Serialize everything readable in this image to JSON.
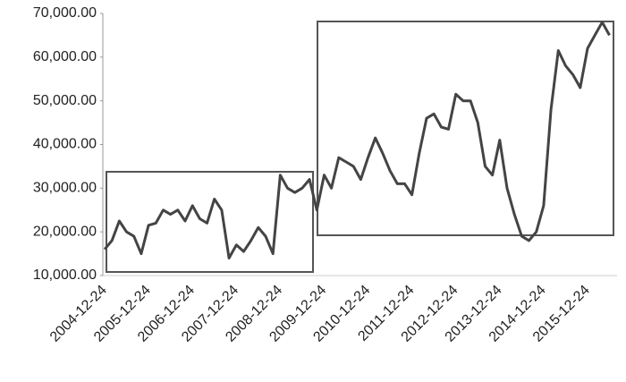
{
  "chart_data": {
    "type": "line",
    "categories": [
      "2004-12-24",
      null,
      null,
      null,
      null,
      null,
      "2005-12-24",
      null,
      null,
      null,
      null,
      null,
      "2006-12-24",
      null,
      null,
      null,
      null,
      null,
      "2007-12-24",
      null,
      null,
      null,
      null,
      null,
      "2008-12-24",
      null,
      null,
      null,
      null,
      null,
      "2009-12-24",
      null,
      null,
      null,
      null,
      null,
      "2010-12-24",
      null,
      null,
      null,
      null,
      null,
      "2011-12-24",
      null,
      null,
      null,
      null,
      null,
      "2012-12-24",
      null,
      null,
      null,
      null,
      null,
      "2013-12-24",
      null,
      null,
      null,
      null,
      null,
      "2014-12-24",
      null,
      null,
      null,
      null,
      null,
      "2015-12-24",
      null,
      null,
      null
    ],
    "values": [
      16000,
      18000,
      22500,
      20000,
      19000,
      15000,
      21500,
      22000,
      25000,
      24000,
      25000,
      22500,
      26000,
      23000,
      22000,
      27500,
      25000,
      14000,
      17000,
      15500,
      18000,
      21000,
      19000,
      15000,
      33000,
      30000,
      29000,
      30000,
      32000,
      25000,
      33000,
      30000,
      37000,
      36000,
      35000,
      32000,
      37000,
      41500,
      38000,
      34000,
      31000,
      31000,
      28500,
      38000,
      46000,
      47000,
      44000,
      43500,
      51500,
      50000,
      50000,
      45000,
      35000,
      33000,
      41000,
      30000,
      24000,
      19000,
      18000,
      20000,
      26000,
      48000,
      61500,
      58000,
      56000,
      53000,
      62000,
      65000,
      68000,
      65000
    ],
    "color": "#444444",
    "ylim": [
      10000,
      70000
    ],
    "yticks": [
      {
        "value": 10000,
        "label": "10,000.00"
      },
      {
        "value": 20000,
        "label": "20,000.00"
      },
      {
        "value": 30000,
        "label": "30,000.00"
      },
      {
        "value": 40000,
        "label": "40,000.00"
      },
      {
        "value": 50000,
        "label": "50,000.00"
      },
      {
        "value": 60000,
        "label": "60,000.00"
      },
      {
        "value": 70000,
        "label": "70,000.00"
      }
    ]
  }
}
